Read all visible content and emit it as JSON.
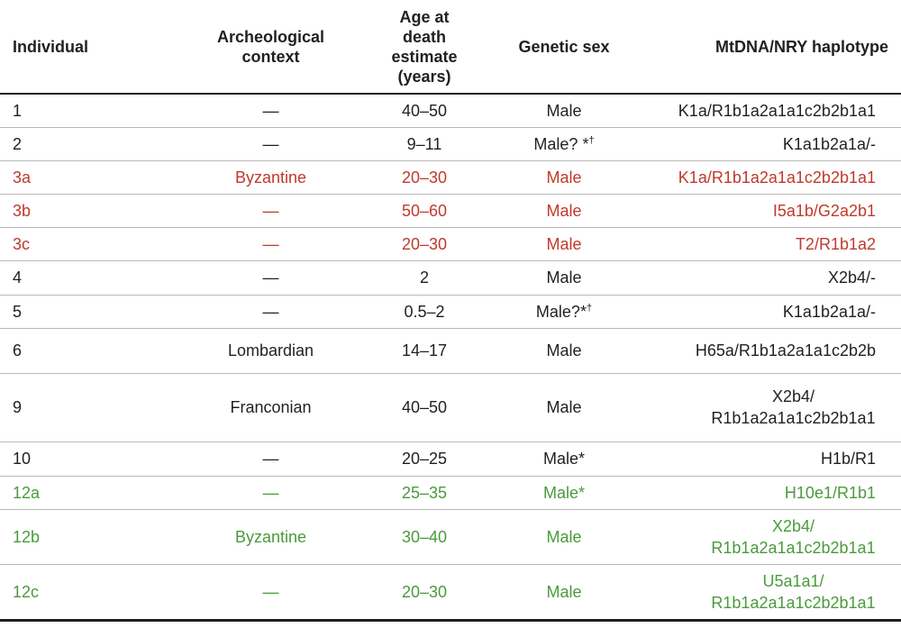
{
  "headers": {
    "individual": "Individual",
    "context_line1": "Archeological",
    "context_line2": "context",
    "age_line1": "Age at",
    "age_line2": "death",
    "age_line3": "estimate",
    "age_line4": "(years)",
    "sex": "Genetic sex",
    "haplotype": "MtDNA/NRY haplotype"
  },
  "rows": [
    {
      "id": "1",
      "context": "—",
      "age": "40–50",
      "sex": "Male",
      "sex_sup": "",
      "hap1": "K1a/R1b1a2a1a1c2b2b1a1",
      "hap2": ""
    },
    {
      "id": "2",
      "context": "—",
      "age": "9–11",
      "sex": "Male? *",
      "sex_sup": "†",
      "hap1": "K1a1b2a1a/-",
      "hap2": ""
    },
    {
      "id": "3a",
      "context": "Byzantine",
      "age": "20–30",
      "sex": "Male",
      "sex_sup": "",
      "hap1": "K1a/R1b1a2a1a1c2b2b1a1",
      "hap2": ""
    },
    {
      "id": "3b",
      "context": "—",
      "age": "50–60",
      "sex": "Male",
      "sex_sup": "",
      "hap1": "I5a1b/G2a2b1",
      "hap2": ""
    },
    {
      "id": "3c",
      "context": "—",
      "age": "20–30",
      "sex": "Male",
      "sex_sup": "",
      "hap1": "T2/R1b1a2",
      "hap2": ""
    },
    {
      "id": "4",
      "context": "—",
      "age": "2",
      "sex": "Male",
      "sex_sup": "",
      "hap1": "X2b4/-",
      "hap2": ""
    },
    {
      "id": "5",
      "context": "—",
      "age": "0.5–2",
      "sex": "Male?*",
      "sex_sup": "†",
      "hap1": "K1a1b2a1a/-",
      "hap2": ""
    },
    {
      "id": "6",
      "context": "Lombardian",
      "age": "14–17",
      "sex": "Male",
      "sex_sup": "",
      "hap1": "H65a/R1b1a2a1a1c2b2b",
      "hap2": ""
    },
    {
      "id": "9",
      "context": "Franconian",
      "age": "40–50",
      "sex": "Male",
      "sex_sup": "",
      "hap1": "X2b4/",
      "hap2": "R1b1a2a1a1c2b2b1a1"
    },
    {
      "id": "10",
      "context": "—",
      "age": "20–25",
      "sex": "Male*",
      "sex_sup": "",
      "hap1": "H1b/R1",
      "hap2": ""
    },
    {
      "id": "12a",
      "context": "—",
      "age": "25–35",
      "sex": "Male*",
      "sex_sup": "",
      "hap1": "H10e1/R1b1",
      "hap2": ""
    },
    {
      "id": "12b",
      "context": "Byzantine",
      "age": "30–40",
      "sex": "Male",
      "sex_sup": "",
      "hap1": "X2b4/",
      "hap2": "R1b1a2a1a1c2b2b1a1"
    },
    {
      "id": "12c",
      "context": "—",
      "age": "20–30",
      "sex": "Male",
      "sex_sup": "",
      "hap1": "U5a1a1/",
      "hap2": "R1b1a2a1a1c2b2b1a1"
    }
  ],
  "colors": {
    "text": "#231f20",
    "red_group": "#c0392b",
    "green_group": "#4a9a3c",
    "row_rule": "#b9b9b9"
  }
}
